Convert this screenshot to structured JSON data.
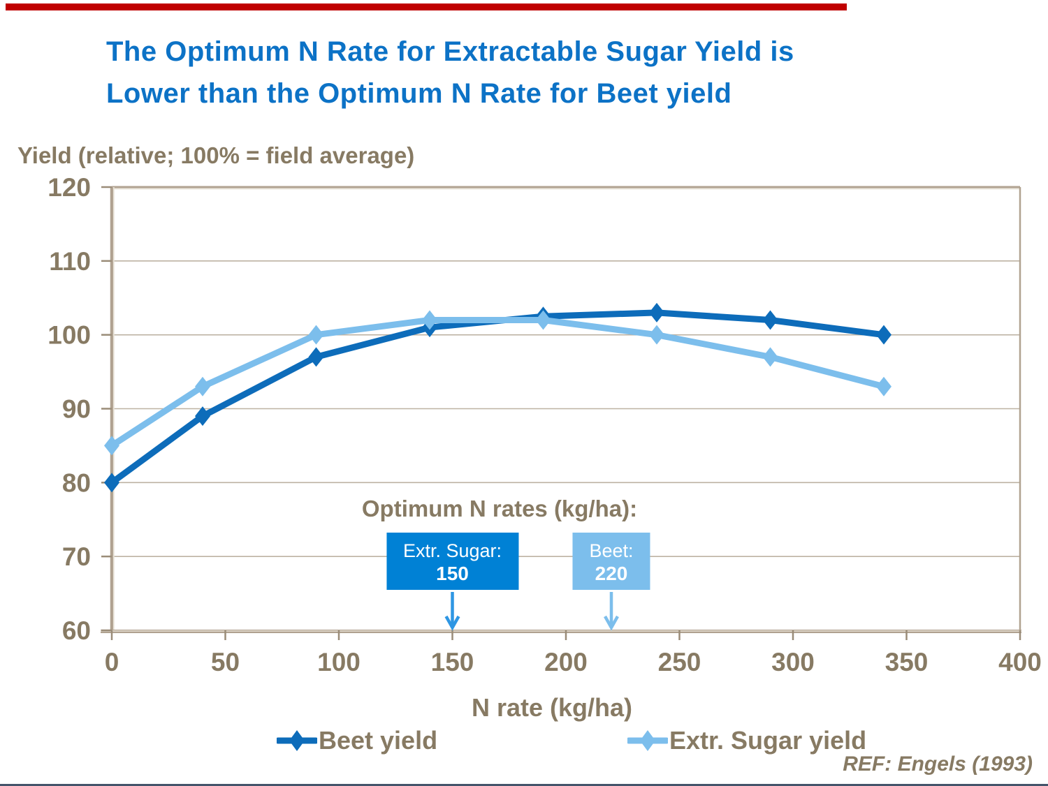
{
  "slide": {
    "title_line1": "The Optimum N Rate for Extractable Sugar Yield is",
    "title_line2": "Lower than the Optimum N Rate for Beet yield",
    "footer_ref": "REF: Engels (1993)"
  },
  "theme": {
    "title_color": "#0C72C6",
    "text_color": "#877A63",
    "grid_color": "#BDB2A2",
    "frame_color": "#B0A290",
    "frame_highlight": "#E8E2D6",
    "tick_color": "#9A8C78",
    "accent_bar_color": "#C00000",
    "bottom_line_color": "#44546A",
    "box_text_color": "#FFFFFF"
  },
  "chart_data": {
    "type": "line",
    "title": "",
    "ylabel": "Yield (relative; 100% = field average)",
    "xlabel": "N rate (kg/ha)",
    "x": [
      0,
      40,
      90,
      140,
      190,
      240,
      290,
      340
    ],
    "series": [
      {
        "name": "Beet yield",
        "color": "#0D6CBA",
        "marker": "diamond",
        "values": [
          80,
          89,
          97,
          101,
          102.5,
          103,
          102,
          100
        ]
      },
      {
        "name": "Extr. Sugar yield",
        "color": "#7CBEEC",
        "marker": "diamond",
        "values": [
          85,
          93,
          100,
          102,
          102,
          100,
          97,
          93
        ]
      }
    ],
    "xlim": [
      0,
      400
    ],
    "ylim": [
      60,
      120
    ],
    "x_ticks": [
      0,
      50,
      100,
      150,
      200,
      250,
      300,
      350,
      400
    ],
    "y_ticks": [
      60,
      70,
      80,
      90,
      100,
      110,
      120
    ],
    "grid": "horizontal",
    "legend_position": "bottom"
  },
  "annotation": {
    "heading": "Optimum N rates (kg/ha):",
    "boxes": [
      {
        "label": "Extr. Sugar:",
        "value": "150",
        "x": 150,
        "bg": "#0081D5",
        "arrow_color": "#2E96E3"
      },
      {
        "label": "Beet:",
        "value": "220",
        "x": 220,
        "bg": "#7CBEEC",
        "arrow_color": "#7CBEEC"
      }
    ]
  }
}
